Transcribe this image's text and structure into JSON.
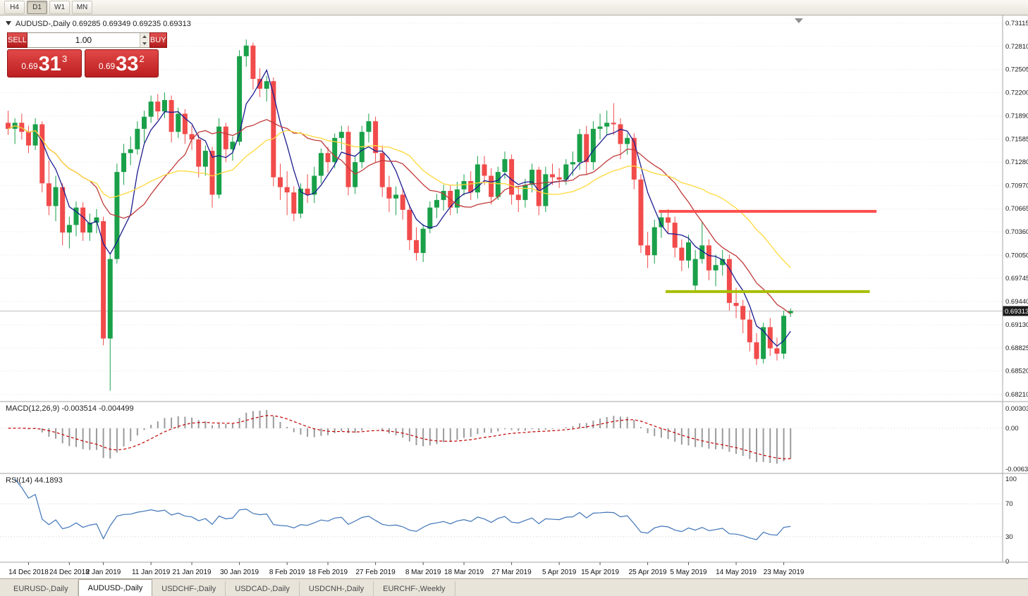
{
  "toolbar": {
    "timeframes": [
      "H4",
      "D1",
      "W1",
      "MN"
    ],
    "active_timeframe": "D1"
  },
  "chart_header": {
    "symbol": "AUDUSD-,Daily",
    "ohlc": "0.69285 0.69349 0.69235 0.69313",
    "open": "0.69285",
    "high": "0.69349",
    "low": "0.69235",
    "close": "0.69313"
  },
  "trade_panel": {
    "sell_label": "SELL",
    "buy_label": "BUY",
    "volume": "1.00",
    "sell_price": {
      "big_figure": "0.69",
      "pips": "31",
      "fraction": "3"
    },
    "buy_price": {
      "big_figure": "0.69",
      "pips": "33",
      "fraction": "2"
    }
  },
  "price_axis": {
    "labels": [
      "0.73115",
      "0.72810",
      "0.72505",
      "0.72200",
      "0.71890",
      "0.71585",
      "0.71280",
      "0.70970",
      "0.70665",
      "0.70360",
      "0.70050",
      "0.69745",
      "0.69440",
      "0.69130",
      "0.68825",
      "0.68520",
      "0.68210"
    ],
    "current_price": "0.69313"
  },
  "indicators": {
    "macd": {
      "label": "MACD(12,26,9)",
      "main_value": "-0.003514",
      "signal_value": "-0.004499",
      "axis": [
        "0.003035",
        "0.00",
        "-0.006310"
      ],
      "fast": 12,
      "slow": 26,
      "signal": 9
    },
    "rsi": {
      "label": "RSI(14)",
      "value_text": "44.1893",
      "axis": [
        "100",
        "70",
        "30",
        "0"
      ],
      "period": 14,
      "levels": [
        70,
        30
      ]
    }
  },
  "time_axis": {
    "labels": [
      {
        "text": "14 Dec 2018",
        "index": 3
      },
      {
        "text": "24 Dec 2018",
        "index": 9
      },
      {
        "text": "2 Jan 2019",
        "index": 14
      },
      {
        "text": "11 Jan 2019",
        "index": 21
      },
      {
        "text": "21 Jan 2019",
        "index": 27
      },
      {
        "text": "30 Jan 2019",
        "index": 34
      },
      {
        "text": "8 Feb 2019",
        "index": 41
      },
      {
        "text": "18 Feb 2019",
        "index": 47
      },
      {
        "text": "27 Feb 2019",
        "index": 54
      },
      {
        "text": "8 Mar 2019",
        "index": 61
      },
      {
        "text": "18 Mar 2019",
        "index": 67
      },
      {
        "text": "27 Mar 2019",
        "index": 74
      },
      {
        "text": "5 Apr 2019",
        "index": 81
      },
      {
        "text": "15 Apr 2019",
        "index": 87
      },
      {
        "text": "25 Apr 2019",
        "index": 94
      },
      {
        "text": "5 May 2019",
        "index": 100
      },
      {
        "text": "14 May 2019",
        "index": 107
      },
      {
        "text": "23 May 2019",
        "index": 114
      }
    ]
  },
  "tabs": [
    {
      "label": "EURUSD-,Daily",
      "active": false
    },
    {
      "label": "AUDUSD-,Daily",
      "active": true
    },
    {
      "label": "USDCHF-,Daily",
      "active": false
    },
    {
      "label": "USDCAD-,Daily",
      "active": false
    },
    {
      "label": "USDCNH-,Daily",
      "active": false
    },
    {
      "label": "EURCHF-,Weekly",
      "active": false
    }
  ],
  "colors": {
    "bull": "#19A049",
    "bear": "#F14B4B",
    "ma_fast": "#1C1C8F",
    "ma_mid": "#C03A3A",
    "ma_slow": "#FFD83A",
    "resistance": "#FF5050",
    "support": "#A8BE00",
    "macd_histogram": "#9B9B9B",
    "macd_signal": "#C00000",
    "rsi_line": "#3E74B8",
    "grid": "#E4E4E4",
    "separator": "#A6A6A6",
    "axis_text": "#1A1A1A",
    "badge_bg": "#1C1C1C",
    "badge_text": "#FFFFFF"
  },
  "chart_data": {
    "type": "candlestick",
    "symbol": "AUDUSD",
    "timeframe": "Daily",
    "title": "AUDUSD-,Daily",
    "ylim": [
      0.6821,
      0.73115
    ],
    "macd_ylim": [
      -0.00631,
      0.003035
    ],
    "rsi_ylim": [
      0,
      100
    ],
    "moving_averages": [
      {
        "period": 5,
        "color": "#1C1C8F",
        "name": "ma-fast-blue"
      },
      {
        "period": 13,
        "color": "#C03A3A",
        "name": "ma-mid-red"
      },
      {
        "period": 26,
        "color": "#FFD83A",
        "name": "ma-slow-yellow"
      }
    ],
    "hlines": [
      {
        "name": "resistance-line",
        "price": 0.7063,
        "color": "#FF5050",
        "width": 4,
        "start_index": 96,
        "end_index": 128
      },
      {
        "name": "support-line",
        "price": 0.6957,
        "color": "#A8BE00",
        "width": 4,
        "start_index": 97,
        "end_index": 127
      }
    ],
    "candles": [
      [
        0.718,
        0.7196,
        0.7164,
        0.7172
      ],
      [
        0.7172,
        0.7186,
        0.7152,
        0.718
      ],
      [
        0.718,
        0.7192,
        0.7158,
        0.7168
      ],
      [
        0.7168,
        0.7176,
        0.714,
        0.715
      ],
      [
        0.715,
        0.7186,
        0.7144,
        0.7178
      ],
      [
        0.7178,
        0.7182,
        0.7088,
        0.71
      ],
      [
        0.71,
        0.713,
        0.7058,
        0.707
      ],
      [
        0.707,
        0.711,
        0.705,
        0.7095
      ],
      [
        0.7095,
        0.71,
        0.7018,
        0.7035
      ],
      [
        0.7035,
        0.7056,
        0.7014,
        0.7045
      ],
      [
        0.7045,
        0.7076,
        0.703,
        0.7068
      ],
      [
        0.7068,
        0.7075,
        0.7024,
        0.7035
      ],
      [
        0.7035,
        0.706,
        0.7024,
        0.7048
      ],
      [
        0.7048,
        0.7066,
        0.7034,
        0.7055
      ],
      [
        0.705,
        0.7056,
        0.6886,
        0.6895
      ],
      [
        0.6895,
        0.7006,
        0.6826,
        0.7
      ],
      [
        0.7,
        0.7126,
        0.6994,
        0.7115
      ],
      [
        0.7115,
        0.7152,
        0.7098,
        0.714
      ],
      [
        0.714,
        0.7162,
        0.7124,
        0.7145
      ],
      [
        0.7145,
        0.7182,
        0.7138,
        0.7172
      ],
      [
        0.7172,
        0.7196,
        0.7154,
        0.7188
      ],
      [
        0.7188,
        0.7216,
        0.718,
        0.7208
      ],
      [
        0.7208,
        0.7218,
        0.7184,
        0.7195
      ],
      [
        0.7195,
        0.722,
        0.7186,
        0.721
      ],
      [
        0.721,
        0.7216,
        0.7154,
        0.7168
      ],
      [
        0.7168,
        0.72,
        0.716,
        0.7192
      ],
      [
        0.7192,
        0.7198,
        0.7152,
        0.7165
      ],
      [
        0.7165,
        0.7176,
        0.7144,
        0.7158
      ],
      [
        0.7158,
        0.7165,
        0.7108,
        0.7122
      ],
      [
        0.7122,
        0.715,
        0.711,
        0.7143
      ],
      [
        0.7143,
        0.7148,
        0.7068,
        0.7085
      ],
      [
        0.7085,
        0.7186,
        0.708,
        0.7175
      ],
      [
        0.7175,
        0.718,
        0.7128,
        0.7145
      ],
      [
        0.7145,
        0.7162,
        0.713,
        0.7155
      ],
      [
        0.7155,
        0.7276,
        0.715,
        0.7268
      ],
      [
        0.7268,
        0.729,
        0.7254,
        0.7282
      ],
      [
        0.7282,
        0.7286,
        0.7224,
        0.7238
      ],
      [
        0.7238,
        0.7252,
        0.7214,
        0.7225
      ],
      [
        0.7225,
        0.7242,
        0.7208,
        0.7235
      ],
      [
        0.7235,
        0.724,
        0.7096,
        0.7108
      ],
      [
        0.7108,
        0.7126,
        0.7078,
        0.7095
      ],
      [
        0.7095,
        0.7116,
        0.7058,
        0.7088
      ],
      [
        0.7088,
        0.7096,
        0.705,
        0.706
      ],
      [
        0.706,
        0.71,
        0.7054,
        0.7093
      ],
      [
        0.7093,
        0.7112,
        0.7074,
        0.7085
      ],
      [
        0.7085,
        0.7122,
        0.7074,
        0.711
      ],
      [
        0.711,
        0.7146,
        0.71,
        0.714
      ],
      [
        0.714,
        0.7148,
        0.7114,
        0.7128
      ],
      [
        0.7128,
        0.7166,
        0.712,
        0.716
      ],
      [
        0.716,
        0.7176,
        0.7144,
        0.7168
      ],
      [
        0.7168,
        0.7176,
        0.7084,
        0.7095
      ],
      [
        0.7095,
        0.7136,
        0.7086,
        0.7128
      ],
      [
        0.7128,
        0.7176,
        0.712,
        0.7168
      ],
      [
        0.7168,
        0.7192,
        0.7154,
        0.7182
      ],
      [
        0.7182,
        0.7188,
        0.7128,
        0.714
      ],
      [
        0.714,
        0.715,
        0.7082,
        0.7095
      ],
      [
        0.7095,
        0.711,
        0.7062,
        0.708
      ],
      [
        0.708,
        0.7096,
        0.7058,
        0.7085
      ],
      [
        0.7085,
        0.7094,
        0.7052,
        0.7065
      ],
      [
        0.7065,
        0.7072,
        0.7012,
        0.7025
      ],
      [
        0.7025,
        0.7042,
        0.6998,
        0.7008
      ],
      [
        0.7008,
        0.7046,
        0.6996,
        0.704
      ],
      [
        0.704,
        0.7076,
        0.7034,
        0.7068
      ],
      [
        0.7068,
        0.7086,
        0.7054,
        0.7078
      ],
      [
        0.7078,
        0.7098,
        0.7064,
        0.709
      ],
      [
        0.709,
        0.7098,
        0.7058,
        0.7068
      ],
      [
        0.7068,
        0.7102,
        0.706,
        0.7092
      ],
      [
        0.7092,
        0.7112,
        0.7084,
        0.7103
      ],
      [
        0.7103,
        0.7116,
        0.7078,
        0.7088
      ],
      [
        0.7088,
        0.7136,
        0.708,
        0.7125
      ],
      [
        0.7125,
        0.7136,
        0.7098,
        0.711
      ],
      [
        0.711,
        0.712,
        0.7072,
        0.7082
      ],
      [
        0.7082,
        0.7122,
        0.7078,
        0.7115
      ],
      [
        0.7115,
        0.7142,
        0.7106,
        0.7132
      ],
      [
        0.7132,
        0.7138,
        0.7072,
        0.7085
      ],
      [
        0.7085,
        0.7096,
        0.7062,
        0.7078
      ],
      [
        0.7078,
        0.7106,
        0.7068,
        0.7098
      ],
      [
        0.7098,
        0.7126,
        0.7088,
        0.7118
      ],
      [
        0.7118,
        0.7122,
        0.7058,
        0.707
      ],
      [
        0.707,
        0.7122,
        0.7062,
        0.7112
      ],
      [
        0.7112,
        0.7126,
        0.7098,
        0.7108
      ],
      [
        0.7108,
        0.712,
        0.7094,
        0.7105
      ],
      [
        0.7105,
        0.7132,
        0.7098,
        0.7125
      ],
      [
        0.7125,
        0.7142,
        0.711,
        0.7128
      ],
      [
        0.7128,
        0.7172,
        0.7118,
        0.7165
      ],
      [
        0.7165,
        0.7176,
        0.7112,
        0.7128
      ],
      [
        0.7128,
        0.7182,
        0.7118,
        0.7172
      ],
      [
        0.7172,
        0.7192,
        0.7158,
        0.7175
      ],
      [
        0.7175,
        0.7196,
        0.7164,
        0.718
      ],
      [
        0.718,
        0.7206,
        0.7164,
        0.7178
      ],
      [
        0.7178,
        0.7186,
        0.7132,
        0.7152
      ],
      [
        0.7152,
        0.7166,
        0.7138,
        0.716
      ],
      [
        0.716,
        0.7166,
        0.7092,
        0.7105
      ],
      [
        0.7105,
        0.7112,
        0.7008,
        0.7018
      ],
      [
        0.7018,
        0.7036,
        0.6988,
        0.7005
      ],
      [
        0.7005,
        0.7052,
        0.6994,
        0.7042
      ],
      [
        0.7042,
        0.7062,
        0.7028,
        0.7055
      ],
      [
        0.7055,
        0.7066,
        0.7034,
        0.7048
      ],
      [
        0.7048,
        0.7056,
        0.7002,
        0.7015
      ],
      [
        0.7015,
        0.7026,
        0.6984,
        0.6998
      ],
      [
        0.6998,
        0.7032,
        0.6988,
        0.7022
      ],
      [
        0.6965,
        0.7012,
        0.6958,
        0.7
      ],
      [
        0.7,
        0.705,
        0.6994,
        0.7018
      ],
      [
        0.7018,
        0.7026,
        0.6972,
        0.6985
      ],
      [
        0.6985,
        0.7006,
        0.6964,
        0.6992
      ],
      [
        0.6992,
        0.7012,
        0.6978,
        0.7
      ],
      [
        0.7,
        0.7006,
        0.6932,
        0.6942
      ],
      [
        0.6942,
        0.6962,
        0.6922,
        0.6938
      ],
      [
        0.6938,
        0.6946,
        0.6902,
        0.692
      ],
      [
        0.692,
        0.6932,
        0.6878,
        0.689
      ],
      [
        0.689,
        0.6902,
        0.686,
        0.6868
      ],
      [
        0.6868,
        0.6916,
        0.6862,
        0.691
      ],
      [
        0.691,
        0.6922,
        0.6872,
        0.6882
      ],
      [
        0.6882,
        0.6896,
        0.6866,
        0.6875
      ],
      [
        0.6875,
        0.6932,
        0.6868,
        0.6925
      ],
      [
        0.69285,
        0.69349,
        0.69235,
        0.69313
      ]
    ]
  }
}
